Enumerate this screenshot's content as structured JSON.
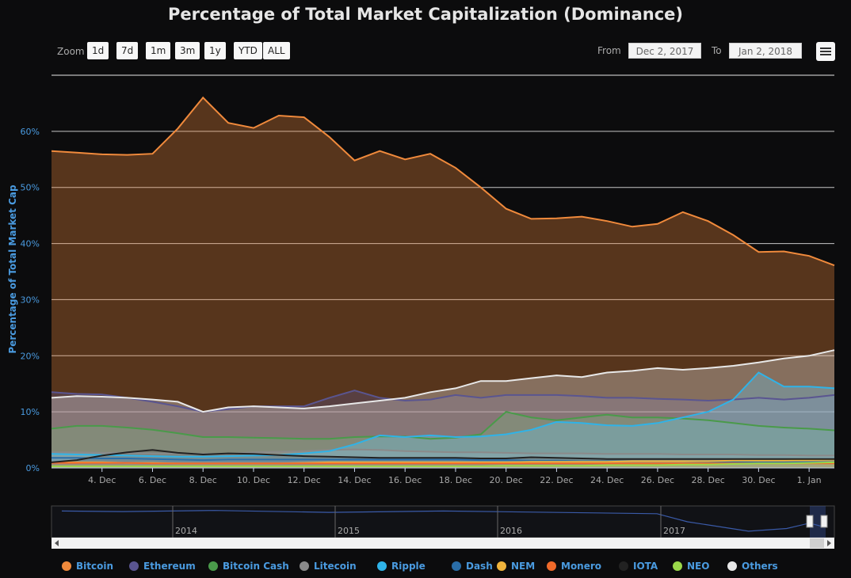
{
  "title": "Percentage of Total Market Capitalization (Dominance)",
  "zoom": {
    "label": "Zoom",
    "buttons": [
      "1d",
      "7d",
      "1m",
      "3m",
      "1y",
      "YTD",
      "ALL"
    ]
  },
  "range": {
    "from_label": "From",
    "from_value": "Dec 2, 2017",
    "to_label": "To",
    "to_value": "Jan 2, 2018"
  },
  "ylabel": "Percentage of Total Market Cap",
  "navigator": {
    "years": [
      "2014",
      "2015",
      "2016",
      "2017"
    ]
  },
  "colors": {
    "bitcoin": "#f08a3c",
    "ethereum": "#5a5590",
    "bitcoin_cash": "#4a9a4a",
    "litecoin": "#8a8a8a",
    "ripple": "#2fb3e8",
    "dash": "#2a6ea8",
    "nem": "#f0b43c",
    "monero": "#f06a2a",
    "iota": "#222222",
    "neo": "#9ad84a",
    "others": "#e8e8e8"
  },
  "chart_data": {
    "type": "area",
    "title": "Percentage of Total Market Capitalization (Dominance)",
    "ylabel": "Percentage of Total Market Cap",
    "x_ticks": [
      "4. Dec",
      "6. Dec",
      "8. Dec",
      "10. Dec",
      "12. Dec",
      "14. Dec",
      "16. Dec",
      "18. Dec",
      "20. Dec",
      "22. Dec",
      "24. Dec",
      "26. Dec",
      "28. Dec",
      "30. Dec",
      "1. Jan"
    ],
    "y_ticks": [
      "0%",
      "10%",
      "20%",
      "30%",
      "40%",
      "50%",
      "60%"
    ],
    "ylim": [
      0,
      70
    ],
    "x": [
      "Dec 2",
      "Dec 3",
      "Dec 4",
      "Dec 5",
      "Dec 6",
      "Dec 7",
      "Dec 8",
      "Dec 9",
      "Dec 10",
      "Dec 11",
      "Dec 12",
      "Dec 13",
      "Dec 14",
      "Dec 15",
      "Dec 16",
      "Dec 17",
      "Dec 18",
      "Dec 19",
      "Dec 20",
      "Dec 21",
      "Dec 22",
      "Dec 23",
      "Dec 24",
      "Dec 25",
      "Dec 26",
      "Dec 27",
      "Dec 28",
      "Dec 29",
      "Dec 30",
      "Dec 31",
      "Jan 1",
      "Jan 2"
    ],
    "series": [
      {
        "name": "Bitcoin",
        "color": "#f08a3c",
        "values": [
          56.5,
          56.2,
          55.9,
          55.8,
          56.0,
          60.5,
          66.0,
          61.5,
          60.6,
          62.8,
          62.5,
          59.0,
          54.8,
          56.5,
          55.0,
          56.0,
          53.5,
          50.0,
          46.2,
          44.4,
          44.5,
          44.8,
          44.0,
          43.0,
          43.5,
          45.6,
          44.0,
          41.5,
          38.5,
          38.6,
          37.8,
          36.1
        ]
      },
      {
        "name": "Ethereum",
        "color": "#5a5590",
        "values": [
          13.5,
          13.2,
          13.1,
          12.5,
          11.8,
          11.0,
          10.0,
          10.5,
          11.0,
          11.0,
          11.0,
          12.5,
          13.8,
          12.5,
          12.0,
          12.2,
          13.0,
          12.5,
          13.0,
          13.0,
          13.0,
          12.8,
          12.5,
          12.5,
          12.3,
          12.2,
          12.0,
          12.2,
          12.5,
          12.2,
          12.5,
          13.0
        ]
      },
      {
        "name": "Bitcoin Cash",
        "color": "#4a9a4a",
        "values": [
          7.0,
          7.5,
          7.5,
          7.2,
          6.8,
          6.2,
          5.5,
          5.5,
          5.4,
          5.3,
          5.2,
          5.2,
          5.5,
          5.6,
          5.6,
          5.2,
          5.4,
          6.0,
          10.0,
          9.0,
          8.5,
          9.0,
          9.5,
          9.0,
          9.0,
          8.8,
          8.5,
          8.0,
          7.5,
          7.2,
          7.0,
          6.7
        ]
      },
      {
        "name": "Litecoin",
        "color": "#8a8a8a",
        "values": [
          2.8,
          2.8,
          2.7,
          2.7,
          2.6,
          2.6,
          2.5,
          2.5,
          2.8,
          2.9,
          3.0,
          3.2,
          3.3,
          3.2,
          3.0,
          2.9,
          2.8,
          2.8,
          2.7,
          2.6,
          2.6,
          2.6,
          2.5,
          2.5,
          2.5,
          2.4,
          2.4,
          2.4,
          2.3,
          2.3,
          2.2,
          2.2
        ]
      },
      {
        "name": "Ripple",
        "color": "#2fb3e8",
        "values": [
          2.5,
          2.4,
          2.3,
          2.2,
          2.1,
          2.0,
          2.0,
          2.1,
          2.2,
          2.3,
          2.6,
          3.0,
          4.2,
          5.8,
          5.5,
          5.8,
          5.5,
          5.6,
          6.0,
          6.8,
          8.2,
          8.0,
          7.6,
          7.5,
          8.0,
          9.0,
          10.0,
          12.2,
          17.0,
          14.5,
          14.5,
          14.2
        ]
      },
      {
        "name": "Dash",
        "color": "#2a6ea8",
        "values": [
          1.8,
          1.8,
          1.7,
          1.7,
          1.6,
          1.5,
          1.4,
          1.5,
          1.5,
          1.5,
          1.5,
          1.5,
          1.5,
          1.5,
          1.5,
          1.5,
          1.5,
          1.4,
          1.4,
          1.3,
          1.3,
          1.2,
          1.2,
          1.2,
          1.2,
          1.2,
          1.1,
          1.1,
          1.0,
          1.0,
          1.0,
          1.0
        ]
      },
      {
        "name": "NEM",
        "color": "#f0b43c",
        "values": [
          1.0,
          1.0,
          1.0,
          0.9,
          0.9,
          0.8,
          0.8,
          0.8,
          0.8,
          0.8,
          0.9,
          1.0,
          1.0,
          1.0,
          1.0,
          1.0,
          1.0,
          1.0,
          1.0,
          1.1,
          1.1,
          1.1,
          1.1,
          1.2,
          1.2,
          1.2,
          1.2,
          1.3,
          1.3,
          1.3,
          1.4,
          1.5
        ]
      },
      {
        "name": "Monero",
        "color": "#f06a2a",
        "values": [
          0.9,
          0.9,
          0.9,
          0.9,
          0.8,
          0.8,
          0.8,
          0.8,
          0.8,
          0.8,
          0.8,
          0.8,
          0.8,
          0.8,
          0.8,
          0.8,
          0.8,
          0.8,
          0.8,
          0.8,
          0.8,
          0.8,
          0.8,
          0.8,
          0.8,
          0.8,
          0.8,
          0.8,
          0.8,
          0.8,
          0.8,
          0.8
        ]
      },
      {
        "name": "IOTA",
        "color": "#222222",
        "values": [
          1.0,
          1.4,
          2.2,
          2.8,
          3.2,
          2.7,
          2.4,
          2.6,
          2.5,
          2.3,
          2.1,
          2.0,
          1.9,
          1.8,
          1.8,
          1.8,
          1.8,
          1.7,
          1.7,
          1.9,
          1.8,
          1.7,
          1.6,
          1.6,
          1.6,
          1.6,
          1.6,
          1.6,
          1.6,
          1.6,
          1.6,
          1.6
        ]
      },
      {
        "name": "NEO",
        "color": "#9ad84a",
        "values": [
          0.3,
          0.3,
          0.3,
          0.3,
          0.3,
          0.3,
          0.3,
          0.3,
          0.3,
          0.3,
          0.3,
          0.3,
          0.3,
          0.3,
          0.3,
          0.3,
          0.3,
          0.3,
          0.4,
          0.4,
          0.4,
          0.4,
          0.5,
          0.5,
          0.5,
          0.6,
          0.6,
          0.7,
          0.8,
          0.8,
          0.9,
          1.0
        ]
      },
      {
        "name": "Others",
        "color": "#e8e8e8",
        "values": [
          12.5,
          12.8,
          12.7,
          12.5,
          12.2,
          11.8,
          10.0,
          10.8,
          11.0,
          10.8,
          10.6,
          11.0,
          11.5,
          12.0,
          12.5,
          13.5,
          14.2,
          15.5,
          15.5,
          16.0,
          16.5,
          16.2,
          17.0,
          17.3,
          17.8,
          17.5,
          17.8,
          18.2,
          18.8,
          19.5,
          20.0,
          21.0
        ]
      }
    ],
    "grid": true,
    "legend_position": "bottom"
  }
}
